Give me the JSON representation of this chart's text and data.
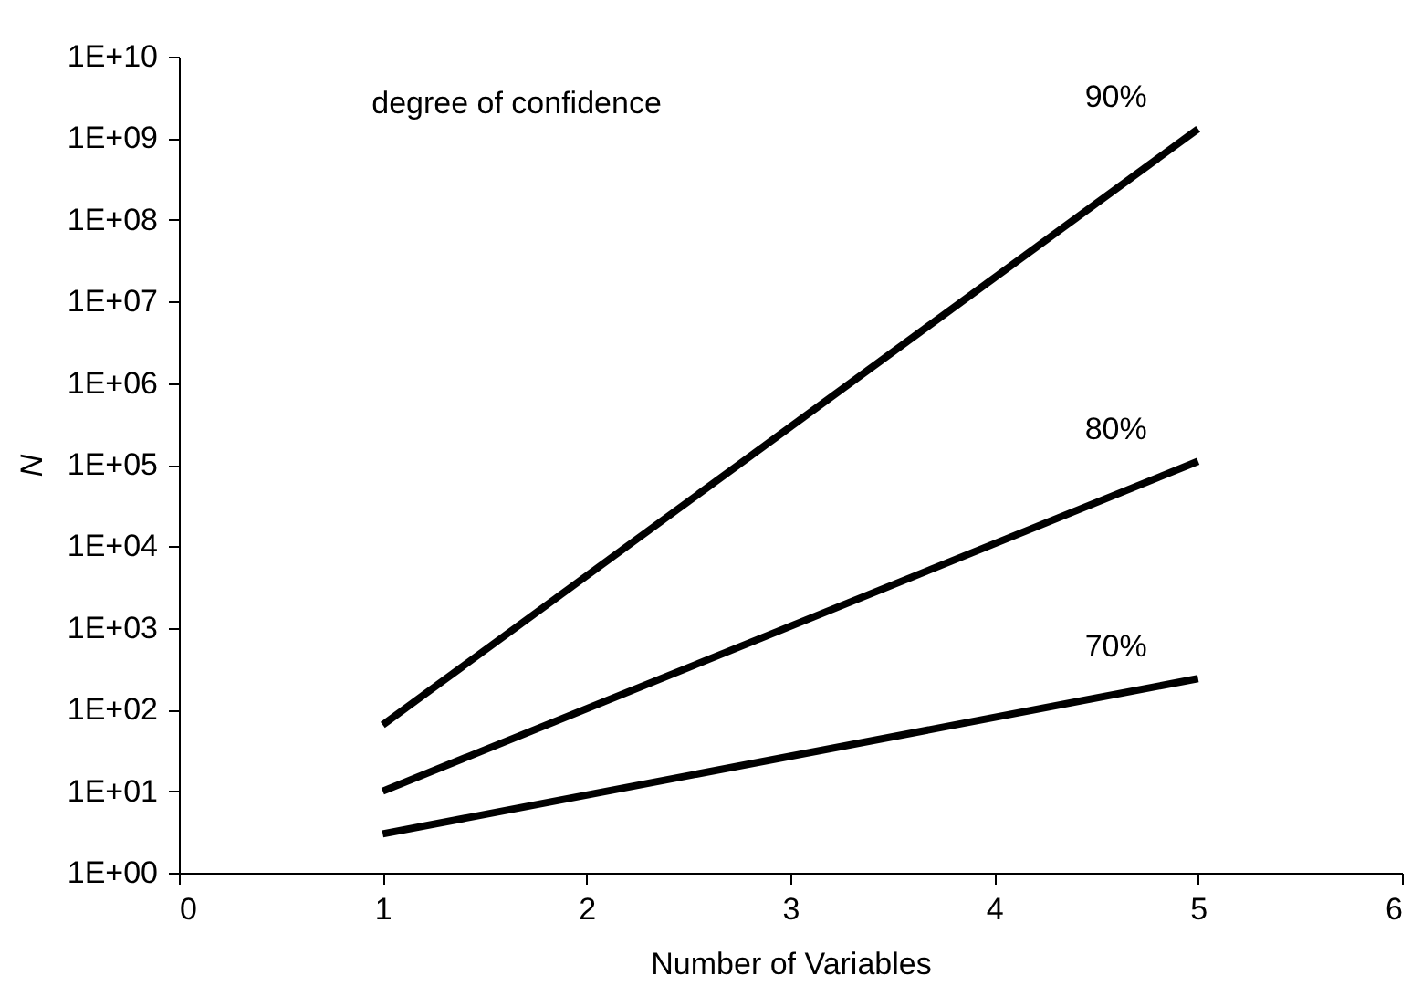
{
  "chart_data": {
    "type": "line",
    "xlabel": "Number of Variables",
    "ylabel": "N",
    "log": "y",
    "xlim": [
      0,
      6
    ],
    "xticks": [
      0,
      1,
      2,
      3,
      4,
      5,
      6
    ],
    "ylim": [
      1,
      10000000000
    ],
    "yticks": [
      {
        "value": 1,
        "label": "1E+00"
      },
      {
        "value": 10,
        "label": "1E+01"
      },
      {
        "value": 100,
        "label": "1E+02"
      },
      {
        "value": 1000,
        "label": "1E+03"
      },
      {
        "value": 10000,
        "label": "1E+04"
      },
      {
        "value": 100000,
        "label": "1E+05"
      },
      {
        "value": 1000000,
        "label": "1E+06"
      },
      {
        "value": 10000000,
        "label": "1E+07"
      },
      {
        "value": 100000000,
        "label": "1E+08"
      },
      {
        "value": 1000000000,
        "label": "1E+09"
      },
      {
        "value": 10000000000,
        "label": "1E+10"
      }
    ],
    "x": [
      1,
      5
    ],
    "series": [
      {
        "name": "90%",
        "color": "#000000",
        "values": [
          65,
          1300000000
        ]
      },
      {
        "name": "80%",
        "color": "#000000",
        "values": [
          10,
          110000
        ]
      },
      {
        "name": "70%",
        "color": "#000000",
        "values": [
          3,
          240
        ]
      }
    ],
    "annotations": [
      "degree of confidence"
    ],
    "grid": false,
    "legend": false,
    "marker": "none",
    "line_style": "solid"
  }
}
